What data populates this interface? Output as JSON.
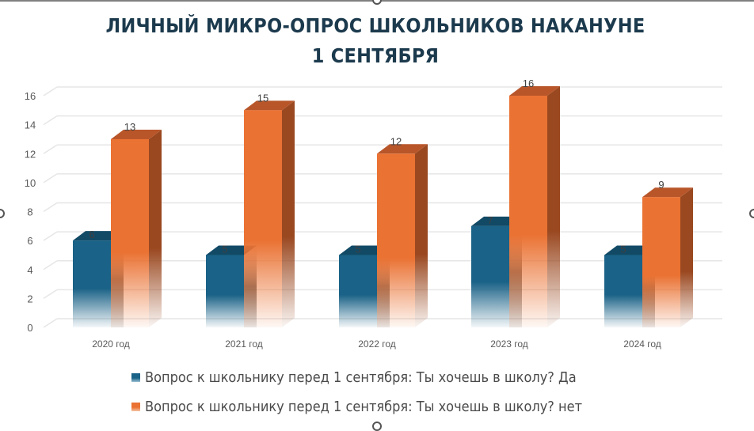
{
  "chart_data": {
    "type": "bar",
    "subtype": "3d-clustered-column",
    "title": "ЛИЧНЫЙ МИКРО-ОПРОС ШКОЛЬНИКОВ НАКАНУНЕ 1 СЕНТЯБРЯ",
    "title_lines": [
      "ЛИЧНЫЙ МИКРО-ОПРОС ШКОЛЬНИКОВ НАКАНУНЕ",
      "1 СЕНТЯБРЯ"
    ],
    "categories": [
      "2020 год",
      "2021 год",
      "2022 год",
      "2023 год",
      "2024 год"
    ],
    "series": [
      {
        "name": "Вопрос к школьнику перед 1 сентября: Ты хочешь в школу? Да",
        "color": "#1a6287",
        "values": [
          6,
          5,
          5,
          7,
          5
        ]
      },
      {
        "name": "Вопрос к школьнику перед 1 сентября: Ты хочешь в школу? нет",
        "color": "#ea7233",
        "values": [
          13,
          15,
          12,
          16,
          9
        ]
      }
    ],
    "xlabel": "",
    "ylabel": "",
    "ylim": [
      0,
      16
    ],
    "yticks": [
      0,
      2,
      4,
      6,
      8,
      10,
      12,
      14,
      16
    ],
    "grid": true,
    "data_labels": true,
    "legend_position": "bottom"
  },
  "colors": {
    "title": "#1c3a4d",
    "series_yes": "#1a6287",
    "series_yes_top": "#124a66",
    "series_no": "#ea7233",
    "series_no_top": "#b8562a",
    "series_no_side": "#9a4820",
    "grid": "#e6e6e6",
    "tick_text": "#595959"
  }
}
